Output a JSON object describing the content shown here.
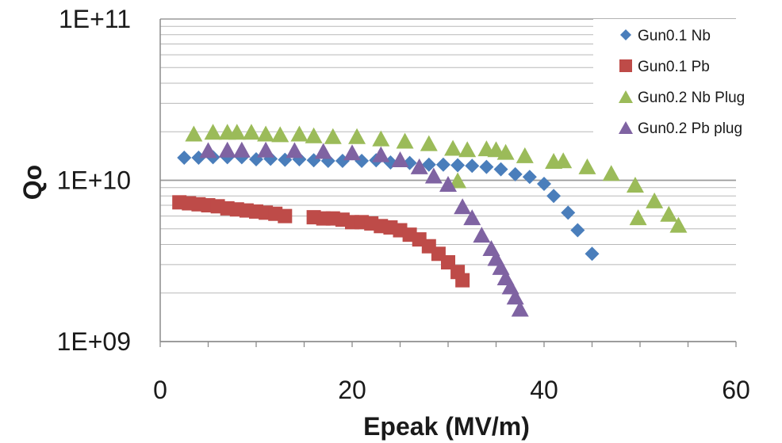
{
  "chart_data": {
    "type": "scatter",
    "title": "",
    "xlabel": "Epeak (MV/m)",
    "ylabel": "Qo",
    "xlim": [
      0,
      60
    ],
    "ylim": [
      1000000000,
      100000000000
    ],
    "y_scale": "log",
    "x_ticks": [
      0,
      20,
      40,
      60
    ],
    "x_tick_labels": [
      "0",
      "20",
      "40",
      "60"
    ],
    "y_ticks": [
      1000000000,
      10000000000,
      100000000000
    ],
    "y_tick_labels": [
      "1E+09",
      "1E+10",
      "1E+11"
    ],
    "grid": "horizontal major and minor",
    "legend_position": "top-right",
    "series": [
      {
        "name": "Gun0.1 Nb",
        "marker": "diamond",
        "color": "#4a7ebb",
        "x": [
          2.5,
          4,
          5.5,
          7,
          8.5,
          10,
          11.5,
          13,
          14.5,
          16,
          17.5,
          19,
          21,
          22.5,
          24,
          26,
          28,
          29.5,
          31,
          32.5,
          34,
          35.5,
          37,
          38.5,
          40,
          41,
          42.5,
          43.5,
          45
        ],
        "y": [
          13800000000,
          13800000000,
          13900000000,
          13900000000,
          13900000000,
          13500000000,
          13600000000,
          13400000000,
          13500000000,
          13300000000,
          13200000000,
          13200000000,
          13200000000,
          13300000000,
          12900000000,
          12800000000,
          12500000000,
          12500000000,
          12400000000,
          12300000000,
          12100000000,
          11700000000,
          10900000000,
          10500000000,
          9500000000,
          8000000000,
          6300000000,
          4900000000,
          3500000000
        ]
      },
      {
        "name": "Gun0.1 Pb",
        "marker": "square",
        "color": "#be4b48",
        "x": [
          2,
          3,
          4,
          5,
          6,
          7,
          8,
          9,
          10,
          11,
          12,
          13,
          16,
          17,
          18,
          19,
          20,
          21,
          22,
          23,
          24,
          25,
          26,
          27,
          28,
          29,
          30,
          31,
          31.5
        ],
        "y": [
          7300000000,
          7200000000,
          7100000000,
          7000000000,
          6900000000,
          6700000000,
          6600000000,
          6500000000,
          6400000000,
          6300000000,
          6200000000,
          6000000000,
          5900000000,
          5800000000,
          5800000000,
          5700000000,
          5500000000,
          5500000000,
          5400000000,
          5200000000,
          5100000000,
          4900000000,
          4600000000,
          4300000000,
          3900000000,
          3500000000,
          3100000000,
          2700000000,
          2400000000
        ]
      },
      {
        "name": "Gun0.2 Nb Plug",
        "marker": "triangle",
        "color": "#9bbb59",
        "x": [
          3.5,
          5.5,
          7,
          8,
          9.5,
          11,
          12.5,
          14.5,
          16,
          18,
          20.5,
          23,
          25.5,
          28,
          30.5,
          31,
          32,
          34,
          35,
          36,
          38,
          41,
          42,
          44.5,
          47,
          49.5,
          49.8,
          51.5,
          53,
          54
        ],
        "y": [
          19500000000,
          20000000000,
          20000000000,
          20000000000,
          20000000000,
          19500000000,
          19300000000,
          19500000000,
          19000000000,
          18800000000,
          18800000000,
          18200000000,
          17600000000,
          17000000000,
          15900000000,
          10000000000,
          15600000000,
          15800000000,
          15600000000,
          15000000000,
          14300000000,
          13200000000,
          13300000000,
          12200000000,
          11100000000,
          9400000000,
          5900000000,
          7500000000,
          6200000000,
          5300000000
        ]
      },
      {
        "name": "Gun0.2 Pb plug",
        "marker": "triangle",
        "color": "#7f63a2",
        "x": [
          5,
          7,
          8.5,
          11,
          14,
          17,
          20,
          23,
          25,
          27,
          28.5,
          30,
          31.5,
          32.5,
          33.5,
          34.5,
          35,
          35.5,
          36,
          36.5,
          37,
          37.5
        ],
        "y": [
          15400000000,
          15500000000,
          15500000000,
          15500000000,
          15400000000,
          15200000000,
          14900000000,
          14500000000,
          13500000000,
          12200000000,
          10700000000,
          9500000000,
          6900000000,
          5900000000,
          4600000000,
          3800000000,
          3300000000,
          2900000000,
          2500000000,
          2200000000,
          1900000000,
          1600000000
        ]
      }
    ]
  }
}
